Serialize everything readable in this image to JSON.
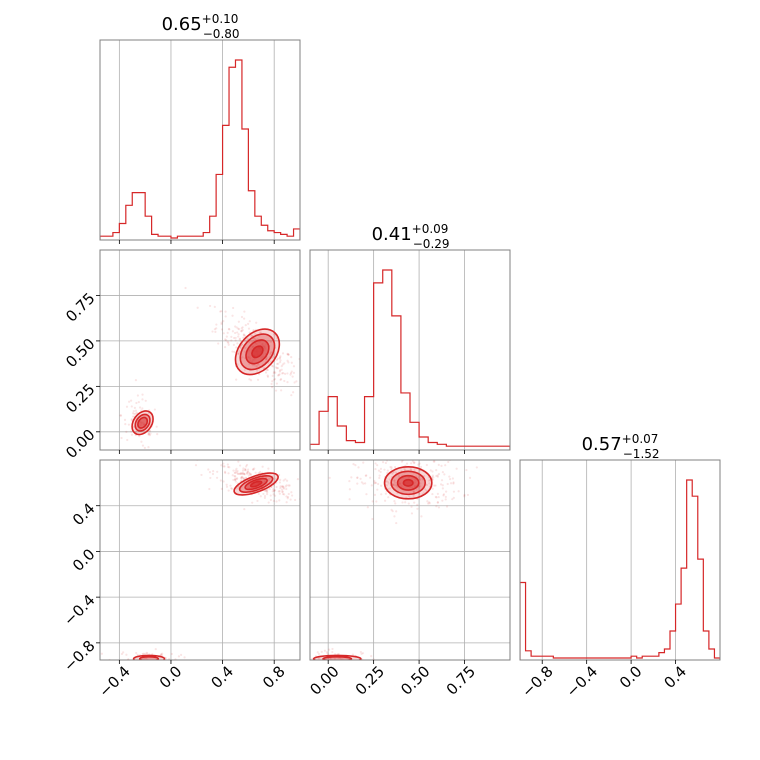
{
  "chart_data": {
    "type": "corner",
    "color": "#d62728",
    "grid": true,
    "panels": [
      {
        "kind": "histogram",
        "row": 0,
        "col": 0,
        "title": {
          "main": "0.65",
          "plus": "+0.10",
          "minus": "−0.80"
        },
        "xlim": [
          -0.55,
          1.0
        ],
        "xticks": [
          -0.4,
          0.0,
          0.4,
          0.8
        ],
        "bins": [
          -0.55,
          -0.5,
          -0.45,
          -0.4,
          -0.35,
          -0.3,
          -0.25,
          -0.2,
          -0.15,
          -0.1,
          -0.05,
          0.0,
          0.05,
          0.1,
          0.15,
          0.2,
          0.25,
          0.3,
          0.35,
          0.4,
          0.45,
          0.5,
          0.55,
          0.6,
          0.65,
          0.7,
          0.75,
          0.8,
          0.85,
          0.9,
          0.95,
          1.0
        ],
        "counts": [
          1,
          1,
          3,
          8,
          18,
          25,
          25,
          12,
          2,
          1,
          1,
          0,
          1,
          1,
          1,
          1,
          3,
          12,
          35,
          62,
          94,
          98,
          60,
          26,
          12,
          7,
          4,
          3,
          2,
          1,
          5
        ]
      },
      {
        "kind": "histogram",
        "row": 1,
        "col": 1,
        "title": {
          "main": "0.41",
          "plus": "+0.09",
          "minus": "−0.29"
        },
        "xlim": [
          -0.1,
          1.0
        ],
        "xticks": [
          0.0,
          0.25,
          0.5,
          0.75
        ],
        "bins": [
          -0.1,
          -0.05,
          0.0,
          0.05,
          0.1,
          0.15,
          0.2,
          0.25,
          0.3,
          0.35,
          0.4,
          0.45,
          0.5,
          0.55,
          0.6,
          0.65,
          0.7,
          0.75,
          0.8,
          0.85,
          0.9,
          0.95,
          1.0
        ],
        "counts": [
          2,
          20,
          28,
          12,
          4,
          3,
          28,
          90,
          97,
          72,
          30,
          14,
          6,
          3,
          2,
          1,
          1,
          1,
          1,
          1,
          1,
          1
        ]
      },
      {
        "kind": "histogram",
        "row": 2,
        "col": 2,
        "title": {
          "main": "0.57",
          "plus": "+0.07",
          "minus": "−1.52"
        },
        "xlim": [
          -1.0,
          0.8
        ],
        "xticks": [
          -0.8,
          -0.4,
          0.0,
          0.4
        ],
        "bins": [
          -1.0,
          -0.95,
          -0.9,
          -0.85,
          -0.8,
          -0.75,
          -0.7,
          -0.65,
          -0.6,
          -0.55,
          -0.5,
          -0.45,
          -0.4,
          -0.35,
          -0.3,
          -0.25,
          -0.2,
          -0.15,
          -0.1,
          -0.05,
          0.0,
          0.05,
          0.1,
          0.15,
          0.2,
          0.25,
          0.3,
          0.35,
          0.4,
          0.45,
          0.5,
          0.55,
          0.6,
          0.65,
          0.7,
          0.75,
          0.8
        ],
        "counts": [
          42,
          4,
          1,
          1,
          1,
          1,
          0,
          0,
          0,
          0,
          0,
          0,
          0,
          0,
          0,
          0,
          0,
          0,
          0,
          0,
          1,
          0,
          1,
          1,
          1,
          3,
          5,
          15,
          30,
          50,
          99,
          90,
          55,
          15,
          5,
          0
        ]
      },
      {
        "kind": "scatter",
        "row": 1,
        "col": 0,
        "xlim": [
          -0.55,
          1.0
        ],
        "ylim": [
          -0.1,
          1.0
        ],
        "xticks": [
          -0.4,
          0.0,
          0.4,
          0.8
        ],
        "yticks": [
          0.0,
          0.25,
          0.5,
          0.75
        ],
        "ytick_labels": [
          "0.00",
          "0.25",
          "0.50",
          "0.75"
        ],
        "clusters": [
          {
            "cx": 0.67,
            "cy": 0.44,
            "sx": 0.1,
            "sy": 0.065,
            "corr": -0.75,
            "n": 300
          },
          {
            "cx": -0.24,
            "cy": 0.05,
            "sx": 0.045,
            "sy": 0.045,
            "corr": -0.3,
            "n": 90
          }
        ],
        "contours": [
          {
            "cx": 0.67,
            "cy": 0.44,
            "rx": 0.2,
            "ry": 0.1,
            "angle": -48,
            "levels": [
              1.0,
              0.78,
              0.52,
              0.25
            ]
          },
          {
            "cx": -0.22,
            "cy": 0.05,
            "rx": 0.1,
            "ry": 0.05,
            "angle": -55,
            "levels": [
              1.0,
              0.7,
              0.45
            ]
          }
        ]
      },
      {
        "kind": "scatter",
        "row": 2,
        "col": 0,
        "xlim": [
          -0.55,
          1.0
        ],
        "ylim": [
          -0.95,
          0.8
        ],
        "xticks": [
          -0.4,
          0.0,
          0.4,
          0.8
        ],
        "yticks": [
          -0.8,
          -0.4,
          0.0,
          0.4
        ],
        "ytick_labels": [
          "−0.8",
          "−0.4",
          "0.0",
          "0.4"
        ],
        "clusters": [
          {
            "cx": 0.66,
            "cy": 0.6,
            "sx": 0.1,
            "sy": 0.05,
            "corr": -0.6,
            "n": 300
          },
          {
            "cx": -0.2,
            "cy": -0.93,
            "sx": 0.08,
            "sy": 0.02,
            "corr": 0.0,
            "n": 70
          }
        ],
        "contours": [
          {
            "cx": 0.66,
            "cy": 0.59,
            "rx": 0.18,
            "ry": 0.07,
            "angle": -20,
            "levels": [
              1.0,
              0.75,
              0.5,
              0.25
            ]
          },
          {
            "cx": -0.17,
            "cy": -0.94,
            "rx": 0.12,
            "ry": 0.03,
            "angle": 0,
            "levels": [
              1.0,
              0.6
            ]
          }
        ]
      },
      {
        "kind": "scatter",
        "row": 2,
        "col": 1,
        "xlim": [
          -0.1,
          1.0
        ],
        "ylim": [
          -0.95,
          0.8
        ],
        "xticks": [
          0.0,
          0.25,
          0.5,
          0.75
        ],
        "yticks": [
          -0.8,
          -0.4,
          0.0,
          0.4
        ],
        "xtick_labels": [
          "0.00",
          "0.25",
          "0.50",
          "0.75"
        ],
        "clusters": [
          {
            "cx": 0.44,
            "cy": 0.6,
            "sx": 0.09,
            "sy": 0.07,
            "corr": 0.0,
            "n": 300
          },
          {
            "cx": 0.05,
            "cy": -0.93,
            "sx": 0.07,
            "sy": 0.02,
            "corr": 0.0,
            "n": 70
          }
        ],
        "contours": [
          {
            "cx": 0.44,
            "cy": 0.6,
            "rx": 0.13,
            "ry": 0.14,
            "angle": 0,
            "levels": [
              1.0,
              0.72,
              0.45,
              0.2
            ]
          },
          {
            "cx": 0.05,
            "cy": -0.94,
            "rx": 0.13,
            "ry": 0.03,
            "angle": 0,
            "levels": [
              1.0,
              0.6
            ]
          }
        ]
      }
    ]
  }
}
